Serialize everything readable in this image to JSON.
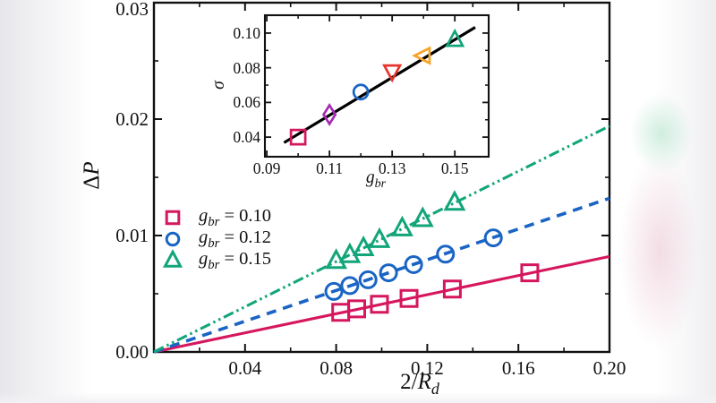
{
  "figure": {
    "background": "#ffffff",
    "title": ""
  },
  "colors": {
    "crimson": "#d5175e",
    "blue": "#1a64c4",
    "green": "#13a57a",
    "purple": "#a62ab3",
    "red": "#e8352c",
    "orange": "#f7a428",
    "axis": "#111111",
    "fit_line": "#000000"
  },
  "labels": {
    "main_ylabel": {
      "delta": "Δ",
      "var": "P"
    },
    "main_xlabel": {
      "prefix": "2/",
      "var": "R",
      "sub": "d"
    },
    "inset_ylabel": {
      "var": "σ"
    },
    "inset_xlabel": {
      "var": "g",
      "sub": "br"
    },
    "legend": [
      {
        "var": "g",
        "sub": "br",
        "eq": " = 0.10"
      },
      {
        "var": "g",
        "sub": "br",
        "eq": " = 0.12"
      },
      {
        "var": "g",
        "sub": "br",
        "eq": " = 0.15"
      }
    ]
  },
  "chart_data": [
    {
      "id": "main",
      "type": "scatter-line",
      "title": "",
      "xlabel": "2/R_d",
      "ylabel": "ΔP",
      "xlim": [
        0,
        0.2
      ],
      "ylim": [
        0,
        0.03
      ],
      "grid": false,
      "legend_position": "upper-left-inside",
      "xticks": {
        "major": [
          0.04,
          0.08,
          0.12,
          0.16,
          0.2
        ],
        "minor": [
          0.02,
          0.06,
          0.1,
          0.14,
          0.18
        ],
        "labels": [
          "0.04",
          "0.08",
          "0.12",
          "0.16",
          "0.20"
        ]
      },
      "yticks": {
        "major": [
          0,
          0.01,
          0.02,
          0.03
        ],
        "minor": [
          0.005,
          0.015,
          0.025
        ],
        "labels": [
          "0.00",
          "0.01",
          "0.02",
          "0.03"
        ]
      },
      "series": [
        {
          "name": "g_br = 0.10",
          "marker": "square",
          "color": "#d5175e",
          "line_style": "solid",
          "slope": 0.041,
          "x": [
            0.082,
            0.089,
            0.099,
            0.112,
            0.131,
            0.165
          ],
          "y": [
            0.0034,
            0.0037,
            0.0041,
            0.0046,
            0.0054,
            0.0068
          ]
        },
        {
          "name": "g_br = 0.12",
          "marker": "circle",
          "color": "#1a64c4",
          "line_style": "dashed",
          "slope": 0.066,
          "x": [
            0.079,
            0.086,
            0.094,
            0.103,
            0.114,
            0.128,
            0.149
          ],
          "y": [
            0.0052,
            0.0057,
            0.0062,
            0.0068,
            0.0075,
            0.0084,
            0.0098
          ]
        },
        {
          "name": "g_br = 0.15",
          "marker": "triangle-up",
          "color": "#13a57a",
          "line_style": "dash-dot",
          "slope": 0.097,
          "x": [
            0.08,
            0.086,
            0.092,
            0.099,
            0.109,
            0.118,
            0.132
          ],
          "y": [
            0.0078,
            0.0083,
            0.0089,
            0.0096,
            0.0106,
            0.0114,
            0.0128
          ]
        }
      ]
    },
    {
      "id": "inset",
      "type": "scatter",
      "title": "",
      "xlabel": "g_br",
      "ylabel": "σ",
      "xlim": [
        0.0894,
        0.1608
      ],
      "ylim": [
        0.0287,
        0.1103
      ],
      "grid": false,
      "xticks": {
        "major": [
          0.09,
          0.11,
          0.13,
          0.15
        ],
        "minor": [
          0.1,
          0.12,
          0.14
        ],
        "labels": [
          "0.09",
          "0.11",
          "0.13",
          "0.15"
        ]
      },
      "yticks": {
        "major": [
          0.04,
          0.06,
          0.08,
          0.1
        ],
        "minor": [
          0.05,
          0.07,
          0.09
        ],
        "labels": [
          "0.04",
          "0.06",
          "0.08",
          "0.10"
        ]
      },
      "fit_line": {
        "color": "#000000",
        "x": [
          0.0955,
          0.1565
        ],
        "y": [
          0.0368,
          0.1033
        ]
      },
      "points": [
        {
          "g_br": 0.1,
          "sigma": 0.04,
          "marker": "square",
          "color": "#d5175e"
        },
        {
          "g_br": 0.11,
          "sigma": 0.053,
          "marker": "diamond",
          "color": "#a62ab3"
        },
        {
          "g_br": 0.12,
          "sigma": 0.066,
          "marker": "circle",
          "color": "#1a64c4"
        },
        {
          "g_br": 0.13,
          "sigma": 0.078,
          "marker": "triangle-down",
          "color": "#e8352c"
        },
        {
          "g_br": 0.14,
          "sigma": 0.087,
          "marker": "triangle-left",
          "color": "#f7a428"
        },
        {
          "g_br": 0.15,
          "sigma": 0.096,
          "marker": "triangle-up",
          "color": "#13a57a"
        }
      ]
    }
  ]
}
